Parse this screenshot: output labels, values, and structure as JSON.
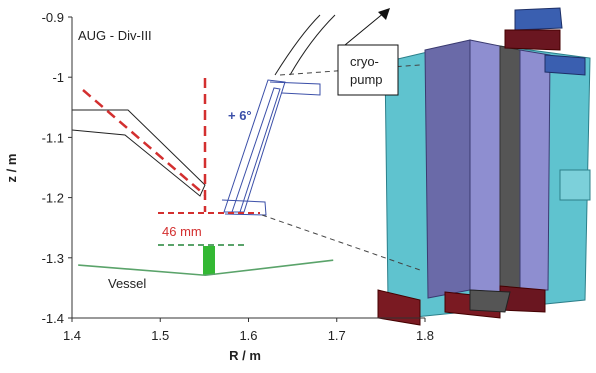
{
  "chart_data": {
    "type": "line",
    "title": "AUG - Div-III",
    "x_label": "R / m",
    "y_label": "z / m",
    "xlim": [
      1.4,
      1.8
    ],
    "ylim": [
      -1.4,
      -0.9
    ],
    "xticks": [
      1.4,
      1.5,
      1.6,
      1.7,
      1.8
    ],
    "yticks": [
      -0.9,
      -1,
      -1.1,
      -1.2,
      -1.3,
      -1.4
    ],
    "x": [
      1.407,
      1.551,
      1.696
    ],
    "series": [
      {
        "name": "Vessel",
        "color": "#5aa36a",
        "values": [
          -1.312,
          -1.329,
          -1.304
        ]
      }
    ],
    "annotations": [
      "+ 6°",
      "46 mm",
      "cryo-",
      "pump"
    ]
  }
}
